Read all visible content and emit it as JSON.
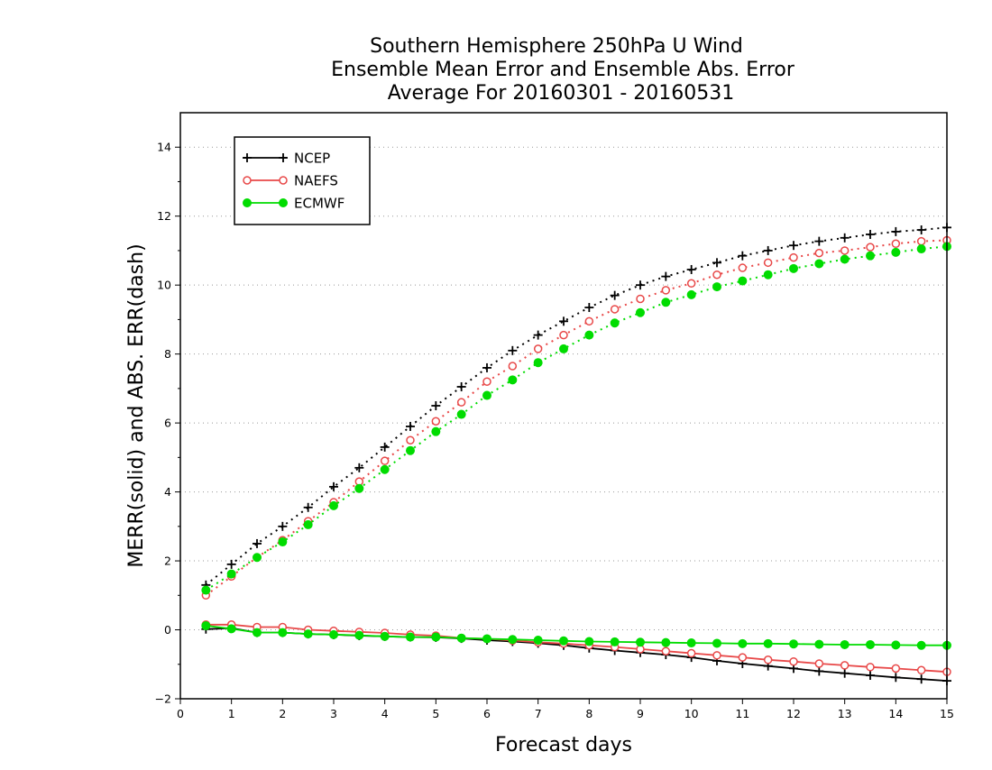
{
  "chart_data": {
    "type": "line",
    "title": [
      "Southern Hemisphere 250hPa U Wind",
      "Ensemble Mean Error and Ensemble Abs. Error",
      "Average For 20160301 - 20160531"
    ],
    "xlabel": "Forecast days",
    "ylabel": "MERR(solid) and ABS. ERR(dash)",
    "xlim": [
      0,
      15
    ],
    "ylim": [
      -2,
      15
    ],
    "xticks": [
      0,
      1,
      2,
      3,
      4,
      5,
      6,
      7,
      8,
      9,
      10,
      11,
      12,
      13,
      14,
      15
    ],
    "yticks": [
      -2,
      0,
      2,
      4,
      6,
      8,
      10,
      12,
      14
    ],
    "grid": "horizontal dotted",
    "legend_position": "top-left",
    "x": [
      0.5,
      1,
      1.5,
      2,
      2.5,
      3,
      3.5,
      4,
      4.5,
      5,
      5.5,
      6,
      6.5,
      7,
      7.5,
      8,
      8.5,
      9,
      9.5,
      10,
      10.5,
      11,
      11.5,
      12,
      12.5,
      13,
      13.5,
      14,
      14.5,
      15
    ],
    "series": [
      {
        "name": "NCEP",
        "metric": "MERR",
        "line": "solid",
        "color": "#000000",
        "marker": "plus",
        "values": [
          0.02,
          0.05,
          -0.08,
          -0.08,
          -0.12,
          -0.14,
          -0.17,
          -0.19,
          -0.21,
          -0.22,
          -0.25,
          -0.3,
          -0.34,
          -0.39,
          -0.45,
          -0.53,
          -0.6,
          -0.66,
          -0.72,
          -0.8,
          -0.9,
          -0.98,
          -1.05,
          -1.12,
          -1.2,
          -1.26,
          -1.32,
          -1.38,
          -1.43,
          -1.48
        ]
      },
      {
        "name": "NAEFS",
        "metric": "MERR",
        "line": "solid",
        "color": "#e84848",
        "marker": "open-circle",
        "values": [
          0.15,
          0.15,
          0.08,
          0.08,
          0.0,
          -0.03,
          -0.06,
          -0.09,
          -0.14,
          -0.17,
          -0.24,
          -0.26,
          -0.31,
          -0.36,
          -0.4,
          -0.45,
          -0.5,
          -0.56,
          -0.62,
          -0.68,
          -0.74,
          -0.8,
          -0.87,
          -0.92,
          -0.98,
          -1.03,
          -1.08,
          -1.12,
          -1.17,
          -1.22
        ]
      },
      {
        "name": "ECMWF",
        "metric": "MERR",
        "line": "solid",
        "color": "#00dc00",
        "marker": "filled-circle",
        "values": [
          0.12,
          0.03,
          -0.08,
          -0.08,
          -0.12,
          -0.14,
          -0.16,
          -0.19,
          -0.21,
          -0.21,
          -0.24,
          -0.26,
          -0.28,
          -0.3,
          -0.32,
          -0.34,
          -0.35,
          -0.36,
          -0.37,
          -0.38,
          -0.39,
          -0.4,
          -0.4,
          -0.41,
          -0.42,
          -0.43,
          -0.43,
          -0.44,
          -0.45,
          -0.45
        ]
      },
      {
        "name": "NCEP",
        "metric": "ABS. ERR",
        "line": "dotted",
        "color": "#000000",
        "marker": "plus",
        "values": [
          1.3,
          1.9,
          2.5,
          3.0,
          3.55,
          4.15,
          4.7,
          5.3,
          5.9,
          6.5,
          7.05,
          7.6,
          8.1,
          8.55,
          8.95,
          9.35,
          9.7,
          10.0,
          10.25,
          10.45,
          10.65,
          10.85,
          11.0,
          11.15,
          11.27,
          11.37,
          11.47,
          11.55,
          11.6,
          11.67
        ]
      },
      {
        "name": "NAEFS",
        "metric": "ABS. ERR",
        "line": "dotted",
        "color": "#e84848",
        "marker": "open-circle",
        "values": [
          1.0,
          1.55,
          2.1,
          2.6,
          3.15,
          3.7,
          4.3,
          4.9,
          5.5,
          6.05,
          6.6,
          7.2,
          7.65,
          8.15,
          8.55,
          8.95,
          9.3,
          9.6,
          9.85,
          10.05,
          10.3,
          10.5,
          10.65,
          10.8,
          10.93,
          11.0,
          11.1,
          11.2,
          11.27,
          11.3
        ]
      },
      {
        "name": "ECMWF",
        "metric": "ABS. ERR",
        "line": "dotted",
        "color": "#00dc00",
        "marker": "filled-circle",
        "values": [
          1.15,
          1.62,
          2.1,
          2.55,
          3.05,
          3.6,
          4.1,
          4.65,
          5.2,
          5.75,
          6.25,
          6.8,
          7.25,
          7.75,
          8.15,
          8.55,
          8.9,
          9.2,
          9.5,
          9.72,
          9.95,
          10.12,
          10.3,
          10.48,
          10.62,
          10.75,
          10.85,
          10.95,
          11.05,
          11.12
        ]
      }
    ],
    "legend": [
      {
        "label": "NCEP",
        "color": "#000000",
        "marker": "plus"
      },
      {
        "label": "NAEFS",
        "color": "#e84848",
        "marker": "open-circle"
      },
      {
        "label": "ECMWF",
        "color": "#00dc00",
        "marker": "filled-circle"
      }
    ]
  }
}
